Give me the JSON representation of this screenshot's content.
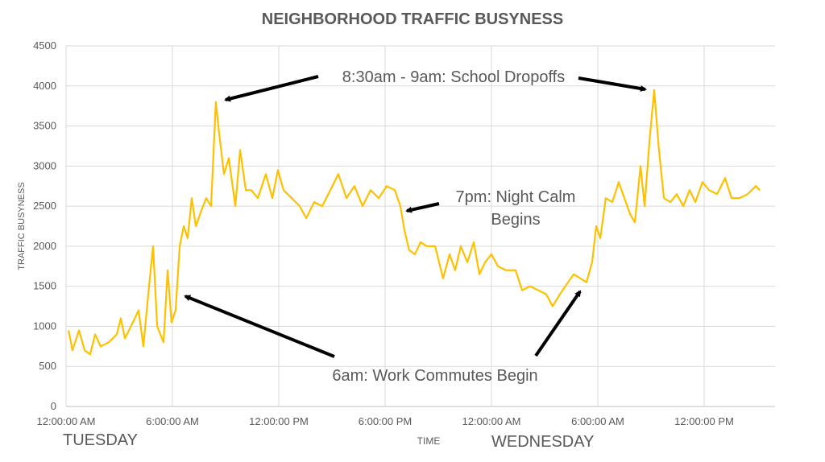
{
  "chart_data": {
    "type": "line",
    "title": "NEIGHBORHOOD TRAFFIC BUSYNESS",
    "y_label": "TRAFFIC BUSYNESS",
    "x_label": "TIME",
    "day_labels": [
      "TUESDAY",
      "WEDNESDAY"
    ],
    "annotations": [
      [
        "8:30am - 9am: School Dropoffs"
      ],
      [
        "7pm: Night Calm",
        "Begins"
      ],
      [
        "6am: Work Commutes Begin"
      ]
    ],
    "xlim": [
      0,
      40
    ],
    "ylim": [
      0,
      4500
    ],
    "xticks": [
      {
        "value": 0,
        "label": "12:00:00 AM"
      },
      {
        "value": 6,
        "label": "6:00:00 AM"
      },
      {
        "value": 12,
        "label": "12:00:00 PM"
      },
      {
        "value": 18,
        "label": "6:00:00 PM"
      },
      {
        "value": 24,
        "label": "12:00:00 AM"
      },
      {
        "value": 30,
        "label": "6:00:00 AM"
      },
      {
        "value": 36,
        "label": "12:00:00 PM"
      }
    ],
    "yticks": [
      0,
      500,
      1000,
      1500,
      2000,
      2500,
      3000,
      3500,
      4000,
      4500
    ],
    "grid": true,
    "series": [
      {
        "name": "Traffic busyness",
        "color": "#ffc000",
        "x": [
          0.14,
          0.36,
          0.73,
          1.05,
          1.36,
          1.64,
          1.95,
          2.41,
          2.86,
          3.09,
          3.32,
          3.77,
          4.09,
          4.36,
          4.68,
          4.91,
          5.14,
          5.5,
          5.73,
          5.95,
          6.18,
          6.41,
          6.64,
          6.86,
          7.09,
          7.32,
          7.64,
          7.91,
          8.18,
          8.45,
          8.64,
          8.91,
          9.18,
          9.55,
          9.82,
          10.14,
          10.45,
          10.82,
          11.27,
          11.64,
          11.95,
          12.27,
          12.73,
          13.18,
          13.55,
          14,
          14.45,
          14.91,
          15.36,
          15.82,
          16.27,
          16.73,
          17.18,
          17.64,
          18.09,
          18.55,
          18.86,
          19.09,
          19.36,
          19.68,
          20,
          20.36,
          20.82,
          21.27,
          21.64,
          21.95,
          22.27,
          22.64,
          23,
          23.32,
          23.64,
          24,
          24.36,
          24.82,
          25.36,
          25.73,
          26.18,
          26.64,
          27.09,
          27.45,
          27.86,
          28.32,
          28.64,
          29,
          29.36,
          29.68,
          29.91,
          30.14,
          30.45,
          30.82,
          31.18,
          31.5,
          31.82,
          32.09,
          32.41,
          32.64,
          32.91,
          33.18,
          33.45,
          33.73,
          34.09,
          34.45,
          34.82,
          35.18,
          35.5,
          35.91,
          36.27,
          36.73,
          37.18,
          37.55,
          38,
          38.45,
          38.91,
          39.14
        ],
        "values": [
          950,
          700,
          950,
          700,
          650,
          900,
          750,
          800,
          900,
          1100,
          850,
          1050,
          1200,
          750,
          1500,
          2000,
          1000,
          800,
          1700,
          1050,
          1200,
          2000,
          2250,
          2100,
          2600,
          2250,
          2450,
          2600,
          2500,
          3800,
          3400,
          2900,
          3100,
          2500,
          3200,
          2700,
          2700,
          2600,
          2900,
          2600,
          2950,
          2700,
          2600,
          2500,
          2350,
          2550,
          2500,
          2700,
          2900,
          2600,
          2750,
          2500,
          2700,
          2600,
          2750,
          2700,
          2500,
          2200,
          1950,
          1900,
          2050,
          2000,
          2000,
          1600,
          1900,
          1700,
          2000,
          1800,
          2050,
          1650,
          1800,
          1900,
          1750,
          1700,
          1700,
          1450,
          1500,
          1450,
          1400,
          1250,
          1400,
          1550,
          1650,
          1600,
          1550,
          1800,
          2250,
          2100,
          2600,
          2550,
          2800,
          2600,
          2400,
          2300,
          3000,
          2500,
          3300,
          3950,
          3200,
          2600,
          2550,
          2650,
          2500,
          2700,
          2550,
          2800,
          2700,
          2650,
          2850,
          2600,
          2600,
          2650,
          2750,
          2700
        ]
      }
    ]
  }
}
